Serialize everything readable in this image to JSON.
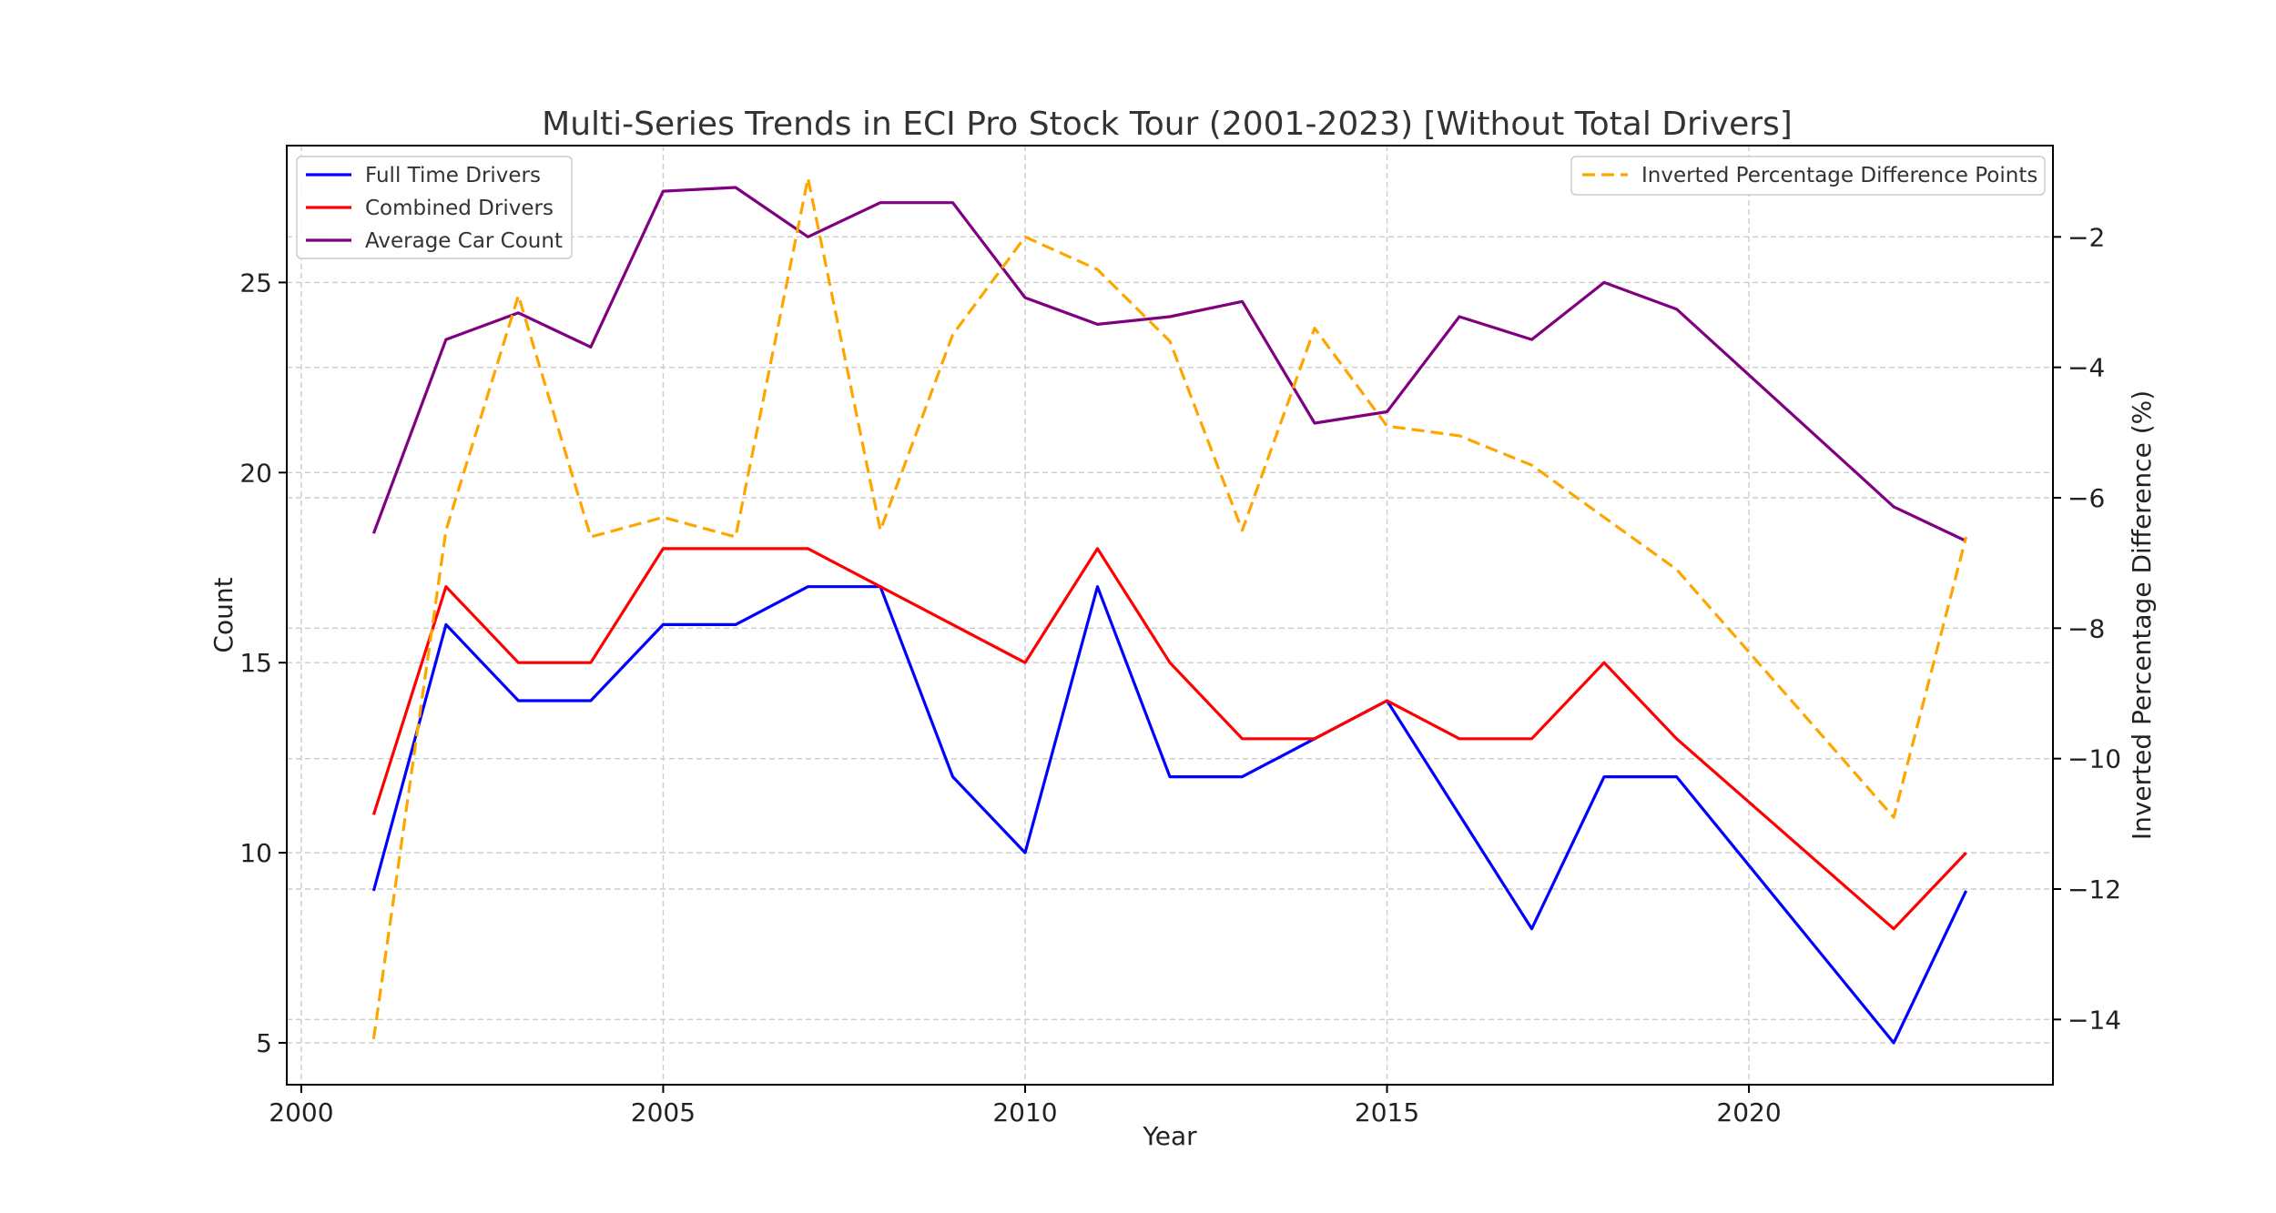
{
  "chart_data": {
    "type": "line",
    "title": "Multi-Series Trends in ECI Pro Stock Tour (2001-2023) [Without Total Drivers]",
    "xlabel": "Year",
    "ylabel": "Count",
    "y2label": "Inverted Percentage Difference (%)",
    "xlim": [
      1999.8,
      2024.2
    ],
    "ylim": [
      3.9,
      28.6
    ],
    "y2lim": [
      -15.0,
      -0.6
    ],
    "x_ticks": [
      2000,
      2005,
      2010,
      2015,
      2020
    ],
    "y_ticks": [
      5,
      10,
      15,
      20,
      25
    ],
    "y2_ticks": [
      -14,
      -12,
      -10,
      -8,
      -6,
      -4,
      -2
    ],
    "grid": true,
    "x": [
      2001,
      2002,
      2003,
      2004,
      2005,
      2006,
      2007,
      2008,
      2009,
      2010,
      2011,
      2012,
      2013,
      2014,
      2015,
      2016,
      2017,
      2018,
      2019,
      2022,
      2023
    ],
    "series": [
      {
        "name": "Full Time Drivers",
        "axis": "left",
        "color": "#0000ff",
        "dash": false,
        "values": [
          9,
          16,
          14,
          14,
          16,
          16,
          17,
          17,
          12,
          10,
          17,
          12,
          12,
          13,
          14,
          11,
          8,
          12,
          12,
          5,
          9
        ]
      },
      {
        "name": "Combined Drivers",
        "axis": "left",
        "color": "#ff0000",
        "dash": false,
        "values": [
          11,
          17,
          15,
          15,
          18,
          18,
          18,
          17,
          16,
          15,
          18,
          15,
          13,
          13,
          14,
          13,
          13,
          15,
          13,
          8,
          10
        ]
      },
      {
        "name": "Average Car Count",
        "axis": "left",
        "color": "#800080",
        "dash": false,
        "values": [
          18.4,
          23.5,
          24.2,
          23.3,
          27.4,
          27.5,
          26.2,
          27.1,
          27.1,
          24.6,
          23.9,
          24.1,
          24.5,
          21.3,
          21.6,
          24.1,
          23.5,
          25.0,
          24.3,
          19.1,
          18.2
        ]
      },
      {
        "name": "Inverted Percentage Difference Points",
        "axis": "right",
        "color": "#ffa500",
        "dash": true,
        "values": [
          -14.3,
          -6.5,
          -2.9,
          -6.6,
          -6.3,
          -6.6,
          -1.1,
          -6.5,
          -3.5,
          -2.0,
          -2.5,
          -3.6,
          -6.5,
          -3.4,
          -4.9,
          -5.05,
          -5.5,
          -6.3,
          -7.1,
          -10.9,
          -6.6
        ]
      }
    ],
    "legend_left": [
      "Full Time Drivers",
      "Combined Drivers",
      "Average Car Count"
    ],
    "legend_right": [
      "Inverted Percentage Difference Points"
    ]
  }
}
